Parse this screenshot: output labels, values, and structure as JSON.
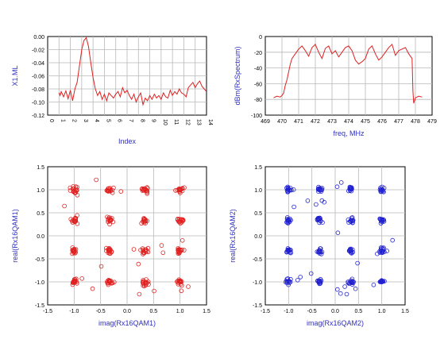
{
  "chart_data": [
    {
      "id": "chart1",
      "type": "line",
      "color": "#e02020",
      "xlabel": "Index",
      "ylabel": "X1.ML",
      "ylim": [
        -0.12,
        0.0
      ],
      "yticks": [
        "0.00",
        "-0.02",
        "-0.04",
        "-0.06",
        "-0.08",
        "-0.10",
        "-0.12"
      ],
      "xticks": [
        "0",
        "1",
        "2",
        "3",
        "4",
        "5",
        "6",
        "7",
        "8",
        "9",
        "10",
        "11",
        "12",
        "13",
        "14"
      ],
      "xlim": [
        0,
        14
      ],
      "grid": true,
      "x": [
        1.0,
        1.1,
        1.2,
        1.4,
        1.6,
        1.8,
        2.0,
        2.2,
        2.4,
        2.6,
        2.8,
        3.0,
        3.2,
        3.4,
        3.6,
        3.8,
        4.0,
        4.2,
        4.4,
        4.6,
        4.8,
        5.0,
        5.2,
        5.4,
        5.6,
        5.8,
        6.0,
        6.2,
        6.4,
        6.6,
        6.8,
        7.0,
        7.2,
        7.4,
        7.6,
        7.8,
        8.0,
        8.2,
        8.4,
        8.6,
        8.8,
        9.0,
        9.2,
        9.4,
        9.6,
        9.8,
        10.0,
        10.2,
        10.4,
        10.6,
        10.8,
        11.0,
        11.2,
        11.4,
        11.6,
        11.8,
        12.0,
        12.2,
        12.4,
        12.6,
        12.8,
        13.0,
        13.2,
        13.4,
        13.6,
        13.8,
        14.0
      ],
      "y": [
        -0.086,
        -0.09,
        -0.084,
        -0.092,
        -0.083,
        -0.095,
        -0.082,
        -0.098,
        -0.08,
        -0.07,
        -0.045,
        -0.02,
        -0.006,
        -0.002,
        -0.015,
        -0.04,
        -0.062,
        -0.08,
        -0.09,
        -0.084,
        -0.096,
        -0.088,
        -0.098,
        -0.086,
        -0.09,
        -0.094,
        -0.088,
        -0.084,
        -0.092,
        -0.078,
        -0.086,
        -0.082,
        -0.09,
        -0.096,
        -0.088,
        -0.1,
        -0.092,
        -0.086,
        -0.104,
        -0.094,
        -0.098,
        -0.09,
        -0.096,
        -0.088,
        -0.094,
        -0.09,
        -0.096,
        -0.086,
        -0.092,
        -0.094,
        -0.082,
        -0.09,
        -0.084,
        -0.088,
        -0.08,
        -0.086,
        -0.088,
        -0.092,
        -0.078,
        -0.074,
        -0.07,
        -0.078,
        -0.072,
        -0.068,
        -0.076,
        -0.08,
        -0.084
      ]
    },
    {
      "id": "chart2",
      "type": "line",
      "color": "#e02020",
      "xlabel": "freq, MHz",
      "ylabel": "dBm(RxSpectrum)",
      "ylim": [
        -100,
        0
      ],
      "xlim": [
        469,
        479
      ],
      "yticks": [
        "0",
        "-20",
        "-40",
        "-60",
        "-80",
        "-100"
      ],
      "xticks": [
        "469",
        "470",
        "471",
        "472",
        "473",
        "474",
        "475",
        "476",
        "477",
        "478",
        "479"
      ],
      "grid": true,
      "x": [
        469.5,
        469.7,
        469.9,
        470.0,
        470.1,
        470.2,
        470.3,
        470.4,
        470.5,
        470.6,
        470.8,
        471.0,
        471.2,
        471.4,
        471.6,
        471.8,
        472.0,
        472.2,
        472.4,
        472.6,
        472.8,
        473.0,
        473.2,
        473.4,
        473.6,
        473.8,
        474.0,
        474.2,
        474.4,
        474.6,
        474.8,
        475.0,
        475.2,
        475.4,
        475.6,
        475.8,
        476.0,
        476.2,
        476.4,
        476.6,
        476.8,
        477.0,
        477.2,
        477.4,
        477.6,
        477.8,
        477.85,
        477.9,
        478.0,
        478.2,
        478.4
      ],
      "y": [
        -78,
        -76,
        -77,
        -75,
        -72,
        -62,
        -55,
        -45,
        -35,
        -28,
        -22,
        -16,
        -12,
        -18,
        -25,
        -14,
        -10,
        -20,
        -28,
        -15,
        -12,
        -22,
        -18,
        -26,
        -20,
        -14,
        -12,
        -18,
        -30,
        -35,
        -32,
        -28,
        -16,
        -12,
        -22,
        -30,
        -26,
        -20,
        -14,
        -10,
        -24,
        -18,
        -16,
        -14,
        -22,
        -28,
        -70,
        -85,
        -78,
        -76,
        -77
      ]
    },
    {
      "id": "chart3",
      "type": "scatter",
      "color": "#e02020",
      "xlabel": "imag(Rx16QAM1)",
      "ylabel": "real(Rx16QAM1)",
      "xlim": [
        -1.5,
        1.5
      ],
      "ylim": [
        -1.5,
        1.5
      ],
      "xticks": [
        "-1.5",
        "-1.0",
        "-0.5",
        "0.0",
        "0.5",
        "1.0",
        "1.5"
      ],
      "yticks": [
        "1.5",
        "1.0",
        "0.5",
        "0.0",
        "-0.5",
        "-1.0",
        "-1.5"
      ],
      "grid": true,
      "constellation": [
        -1.0,
        -0.33,
        0.33,
        1.0
      ],
      "points_per_cluster": 16,
      "spread": 0.075
    },
    {
      "id": "chart4",
      "type": "scatter",
      "color": "#2020d0",
      "xlabel": "imag(Rx16QAM2)",
      "ylabel": "real(Rx16QAM2)",
      "xlim": [
        -1.5,
        1.5
      ],
      "ylim": [
        -1.5,
        1.5
      ],
      "xticks": [
        "-1.5",
        "-1.0",
        "-0.5",
        "0.0",
        "0.5",
        "1.0",
        "1.5"
      ],
      "yticks": [
        "1.5",
        "1.0",
        "0.5",
        "0.0",
        "-0.5",
        "-1.0",
        "-1.5"
      ],
      "grid": true,
      "constellation": [
        -1.0,
        -0.33,
        0.33,
        1.0
      ],
      "points_per_cluster": 14,
      "spread": 0.07
    }
  ]
}
